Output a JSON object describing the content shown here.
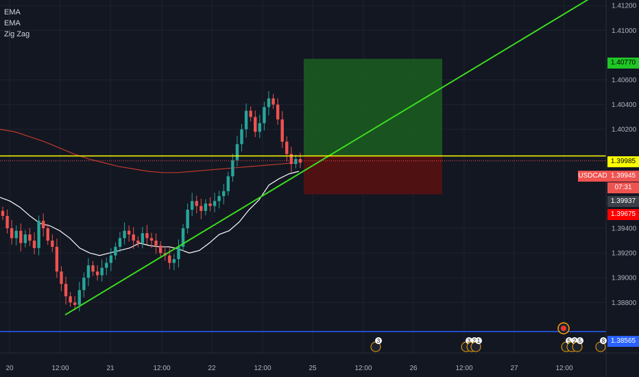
{
  "legend": {
    "items": [
      "EMA",
      "EMA",
      "Zig Zag"
    ]
  },
  "colors": {
    "background": "#131722",
    "grid": "#1e2330",
    "up": "#26a69a",
    "down": "#ef5350",
    "ema_slow": "#c0392b",
    "ema_fast": "#ffffff",
    "trendline": "#3cdd1e",
    "level_yellow": "#ffff00",
    "level_blue": "#2962ff",
    "profit_zone": "#1b5e20",
    "loss_zone": "#5c1010"
  },
  "price_tags": {
    "target": "1.40770",
    "yellow_level": "1.39985",
    "last_price": "1.39945",
    "symbol": "USDCAD",
    "countdown": "07:31",
    "ema_value": "1.39937",
    "stop": "1.39675",
    "blue_level": "1.38565"
  },
  "chart_data": {
    "type": "candlestick",
    "symbol": "USDCAD",
    "y_ticks": [
      "1.41200",
      "1.41000",
      "1.40600",
      "1.40400",
      "1.40200",
      "1.39400",
      "1.39200",
      "1.39000",
      "1.38800"
    ],
    "x_ticks": [
      "20",
      "12:00",
      "21",
      "12:00",
      "22",
      "12:00",
      "25",
      "12:00",
      "26",
      "12:00",
      "27",
      "12:00"
    ],
    "ylim": [
      1.3848,
      1.4124
    ],
    "close_trend": [
      1.395,
      1.394,
      1.3932,
      1.3938,
      1.3928,
      1.3935,
      1.393,
      1.3924,
      1.3946,
      1.394,
      1.393,
      1.3925,
      1.3905,
      1.3895,
      1.3885,
      1.388,
      1.3878,
      1.389,
      1.39,
      1.391,
      1.3905,
      1.3902,
      1.3908,
      1.3912,
      1.3918,
      1.3925,
      1.3932,
      1.3938,
      1.3935,
      1.393,
      1.3928,
      1.3936,
      1.3932,
      1.393,
      1.3926,
      1.392,
      1.3918,
      1.3912,
      1.3915,
      1.3925,
      1.394,
      1.3955,
      1.3962,
      1.3958,
      1.3954,
      1.396,
      1.3958,
      1.3962,
      1.3966,
      1.397,
      1.3982,
      1.3995,
      1.4008,
      1.402,
      1.4035,
      1.403,
      1.4018,
      1.4025,
      1.4038,
      1.4045,
      1.404,
      1.4028,
      1.401,
      1.4,
      1.3992,
      1.3996,
      1.3993
    ],
    "ema_slow": [
      1.402,
      1.4018,
      1.4014,
      1.401,
      1.4005,
      1.4,
      1.3996,
      1.3993,
      1.399,
      1.3988,
      1.3986,
      1.3985,
      1.3985,
      1.3986,
      1.3987,
      1.3988,
      1.3989,
      1.399,
      1.3991,
      1.3992,
      1.3993
    ],
    "ema_fast": [
      1.3965,
      1.3962,
      1.3957,
      1.395,
      1.3944,
      1.3942,
      1.3938,
      1.3932,
      1.3924,
      1.392,
      1.3918,
      1.392,
      1.3922,
      1.3924,
      1.3928,
      1.3926,
      1.3925,
      1.3925,
      1.3923,
      1.392,
      1.3922,
      1.3928,
      1.3935,
      1.3938,
      1.3945,
      1.3955,
      1.3963,
      1.3975,
      1.398,
      1.3984,
      1.3986
    ],
    "trendline": {
      "from": [
        0.183,
        1.387
      ],
      "to": [
        0.98,
        1.4128
      ]
    },
    "yellow_level": 1.39985,
    "blue_level": 1.38565,
    "position": {
      "entry": 1.39985,
      "target": 1.4077,
      "stop": 1.39675
    },
    "events": [
      {
        "label": "3"
      },
      {
        "label": "3"
      },
      {
        "label": "3"
      },
      {
        "label": "1"
      },
      {
        "label": "5"
      },
      {
        "label": "2"
      },
      {
        "label": "5"
      },
      {
        "label": "8"
      }
    ]
  }
}
